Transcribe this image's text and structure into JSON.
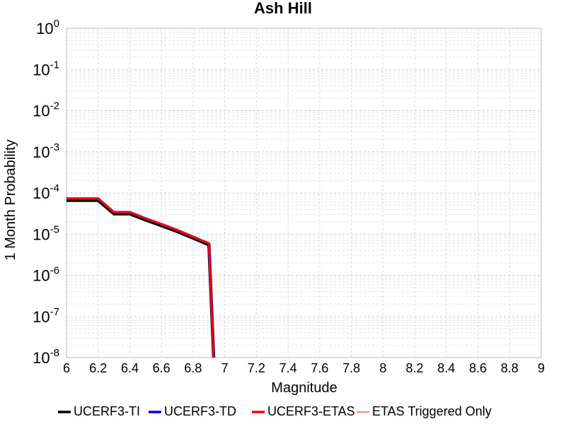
{
  "chart_data": {
    "type": "line",
    "title": "Ash Hill",
    "xlabel": "Magnitude",
    "ylabel": "1 Month Probability",
    "xlim": [
      6,
      9
    ],
    "ylim": [
      1e-08,
      1
    ],
    "y_scale": "log",
    "grid": true,
    "legend_placement": "bottom",
    "x_ticks": [
      "6",
      "6.2",
      "6.4",
      "6.6",
      "6.8",
      "7",
      "7.2",
      "7.4",
      "7.6",
      "7.8",
      "8",
      "8.2",
      "8.4",
      "8.6",
      "8.8",
      "9"
    ],
    "y_ticks": [
      {
        "base": "10",
        "exp": "0",
        "value": 1
      },
      {
        "base": "10",
        "exp": "-1",
        "value": 0.1
      },
      {
        "base": "10",
        "exp": "-2",
        "value": 0.01
      },
      {
        "base": "10",
        "exp": "-3",
        "value": 0.001
      },
      {
        "base": "10",
        "exp": "-4",
        "value": 0.0001
      },
      {
        "base": "10",
        "exp": "-5",
        "value": 1e-05
      },
      {
        "base": "10",
        "exp": "-6",
        "value": 1e-06
      },
      {
        "base": "10",
        "exp": "-7",
        "value": 1e-07
      },
      {
        "base": "10",
        "exp": "-8",
        "value": 1e-08
      }
    ],
    "series": [
      {
        "name": "UCERF3-TI",
        "color": "#000000",
        "x": [
          6.0,
          6.2,
          6.3,
          6.4,
          6.5,
          6.6,
          6.7,
          6.8,
          6.9,
          6.93
        ],
        "y": [
          6.6e-05,
          6.6e-05,
          3.1e-05,
          3.1e-05,
          2.2e-05,
          1.6e-05,
          1.15e-05,
          8e-06,
          5.5e-06,
          1e-08
        ]
      },
      {
        "name": "UCERF3-TD",
        "color": "#0000ff",
        "x": [
          6.0,
          6.2,
          6.3,
          6.4,
          6.5,
          6.6,
          6.7,
          6.8,
          6.9,
          6.93
        ],
        "y": [
          7.3e-05,
          7.3e-05,
          3.4e-05,
          3.4e-05,
          2.4e-05,
          1.75e-05,
          1.25e-05,
          8.6e-06,
          5.9e-06,
          1e-08
        ]
      },
      {
        "name": "UCERF3-ETAS",
        "color": "#ff0000",
        "x": [
          6.0,
          6.2,
          6.3,
          6.4,
          6.5,
          6.6,
          6.7,
          6.8,
          6.9,
          6.93
        ],
        "y": [
          7.3e-05,
          7.3e-05,
          3.4e-05,
          3.4e-05,
          2.4e-05,
          1.75e-05,
          1.25e-05,
          8.6e-06,
          5.9e-06,
          1e-08
        ]
      },
      {
        "name": "ETAS Triggered Only",
        "color": "#ff8080",
        "x": [],
        "y": []
      }
    ]
  }
}
